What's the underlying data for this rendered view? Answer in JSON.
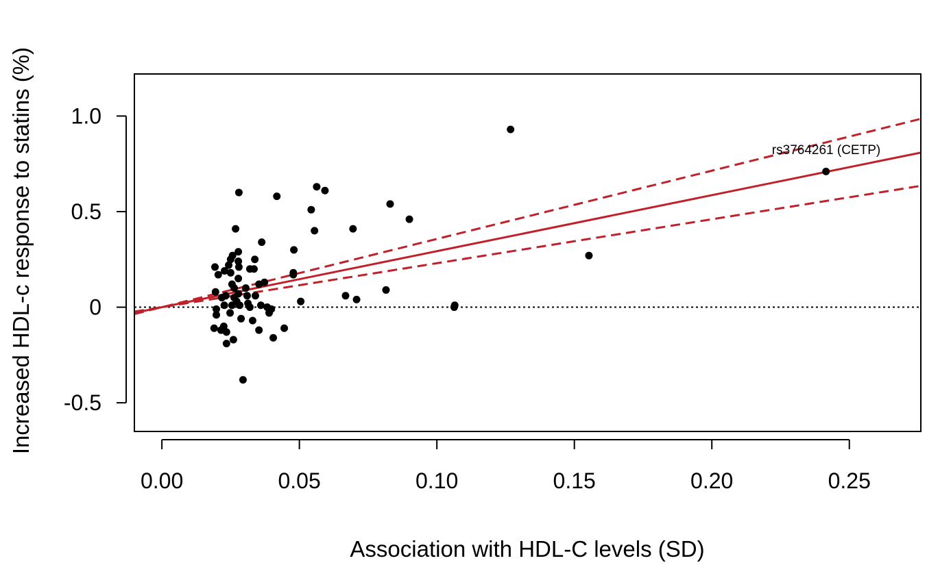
{
  "chart_data": {
    "type": "scatter",
    "xlabel": "Association with HDL-C levels (SD)",
    "ylabel": "Increased HDL-c response to statins (%)",
    "xlim": [
      -0.01,
      0.276
    ],
    "ylim": [
      -0.65,
      1.22
    ],
    "xticks": [
      0.0,
      0.05,
      0.1,
      0.15,
      0.2,
      0.25
    ],
    "xtick_labels": [
      "0.00",
      "0.05",
      "0.10",
      "0.15",
      "0.20",
      "0.25"
    ],
    "yticks": [
      -0.5,
      0,
      0.5,
      1.0
    ],
    "ytick_labels": [
      "-0.5",
      "0",
      "0.5",
      "1.0"
    ],
    "grid": false,
    "reference_line": {
      "y": 0,
      "style": "dotted",
      "color": "#000000"
    },
    "fit": {
      "slope": 2.93,
      "upper_slope": 3.57,
      "lower_slope": 2.3,
      "color": "#c0202a"
    },
    "annotation": {
      "text": "rs3764261 (CETP)",
      "x": 0.2415,
      "y": 0.71
    },
    "point_color": "#000000",
    "points": [
      {
        "x": 0.0193,
        "y": 0.21
      },
      {
        "x": 0.0205,
        "y": 0.17
      },
      {
        "x": 0.0228,
        "y": 0.19
      },
      {
        "x": 0.0195,
        "y": 0.08
      },
      {
        "x": 0.0218,
        "y": 0.05
      },
      {
        "x": 0.0232,
        "y": 0.06
      },
      {
        "x": 0.0198,
        "y": -0.01
      },
      {
        "x": 0.0198,
        "y": -0.04
      },
      {
        "x": 0.019,
        "y": -0.11
      },
      {
        "x": 0.0215,
        "y": -0.12
      },
      {
        "x": 0.0225,
        "y": -0.1
      },
      {
        "x": 0.0235,
        "y": -0.13
      },
      {
        "x": 0.0235,
        "y": -0.19
      },
      {
        "x": 0.026,
        "y": -0.17
      },
      {
        "x": 0.0227,
        "y": 0.01
      },
      {
        "x": 0.0243,
        "y": 0.22
      },
      {
        "x": 0.025,
        "y": 0.25
      },
      {
        "x": 0.0257,
        "y": 0.27
      },
      {
        "x": 0.025,
        "y": 0.18
      },
      {
        "x": 0.0255,
        "y": 0.12
      },
      {
        "x": 0.0263,
        "y": 0.1
      },
      {
        "x": 0.0263,
        "y": 0.05
      },
      {
        "x": 0.0255,
        "y": 0.01
      },
      {
        "x": 0.0248,
        "y": -0.03
      },
      {
        "x": 0.0268,
        "y": 0.41
      },
      {
        "x": 0.028,
        "y": 0.6
      },
      {
        "x": 0.0278,
        "y": 0.29
      },
      {
        "x": 0.0278,
        "y": 0.24
      },
      {
        "x": 0.028,
        "y": 0.21
      },
      {
        "x": 0.0278,
        "y": 0.15
      },
      {
        "x": 0.0278,
        "y": 0.07
      },
      {
        "x": 0.0272,
        "y": 0.03
      },
      {
        "x": 0.0283,
        "y": 0.01
      },
      {
        "x": 0.0288,
        "y": -0.06
      },
      {
        "x": 0.0295,
        "y": -0.38
      },
      {
        "x": 0.0305,
        "y": 0.1
      },
      {
        "x": 0.031,
        "y": 0.06
      },
      {
        "x": 0.0313,
        "y": 0.02
      },
      {
        "x": 0.032,
        "y": 0.0
      },
      {
        "x": 0.032,
        "y": 0.2
      },
      {
        "x": 0.0335,
        "y": 0.2
      },
      {
        "x": 0.0338,
        "y": 0.25
      },
      {
        "x": 0.033,
        "y": -0.07
      },
      {
        "x": 0.034,
        "y": 0.06
      },
      {
        "x": 0.0353,
        "y": -0.12
      },
      {
        "x": 0.0353,
        "y": 0.12
      },
      {
        "x": 0.036,
        "y": 0.01
      },
      {
        "x": 0.0363,
        "y": 0.34
      },
      {
        "x": 0.0373,
        "y": 0.13
      },
      {
        "x": 0.0383,
        "y": 0.0
      },
      {
        "x": 0.039,
        "y": -0.03
      },
      {
        "x": 0.0398,
        "y": -0.01
      },
      {
        "x": 0.0405,
        "y": -0.16
      },
      {
        "x": 0.0418,
        "y": 0.58
      },
      {
        "x": 0.0445,
        "y": -0.11
      },
      {
        "x": 0.0478,
        "y": 0.18
      },
      {
        "x": 0.0478,
        "y": 0.17
      },
      {
        "x": 0.048,
        "y": 0.3
      },
      {
        "x": 0.0505,
        "y": 0.03
      },
      {
        "x": 0.0543,
        "y": 0.51
      },
      {
        "x": 0.0555,
        "y": 0.4
      },
      {
        "x": 0.0563,
        "y": 0.63
      },
      {
        "x": 0.0593,
        "y": 0.61
      },
      {
        "x": 0.0668,
        "y": 0.06
      },
      {
        "x": 0.0695,
        "y": 0.41
      },
      {
        "x": 0.0708,
        "y": 0.04
      },
      {
        "x": 0.0815,
        "y": 0.09
      },
      {
        "x": 0.083,
        "y": 0.54
      },
      {
        "x": 0.09,
        "y": 0.46
      },
      {
        "x": 0.1063,
        "y": 0.0
      },
      {
        "x": 0.1065,
        "y": 0.01
      },
      {
        "x": 0.1268,
        "y": 0.93
      },
      {
        "x": 0.1553,
        "y": 0.27
      },
      {
        "x": 0.2415,
        "y": 0.71
      }
    ]
  }
}
